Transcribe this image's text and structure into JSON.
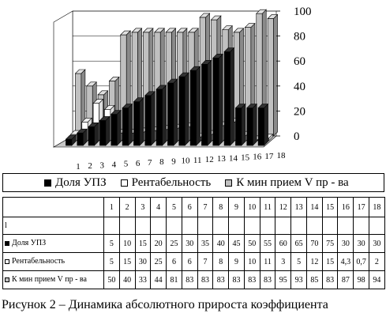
{
  "chart_data": {
    "type": "bar",
    "categories": [
      "1",
      "2",
      "3",
      "4",
      "5",
      "6",
      "7",
      "8",
      "9",
      "10",
      "11",
      "12",
      "13",
      "14",
      "15",
      "16",
      "17",
      "18"
    ],
    "series": [
      {
        "name": "Доля УПЗ",
        "color": "#000000",
        "values": [
          5,
          10,
          15,
          20,
          25,
          30,
          35,
          40,
          45,
          50,
          55,
          60,
          65,
          70,
          75,
          30,
          30,
          30
        ]
      },
      {
        "name": "Рентабельность",
        "color": "#ffffff",
        "values": [
          5,
          15,
          30,
          25,
          6,
          6,
          7,
          8,
          9,
          10,
          11,
          3,
          5,
          12,
          15,
          4.3,
          0.7,
          2
        ]
      },
      {
        "name": "К мин прием V пр - ва",
        "color": "#c0c0c0",
        "values": [
          50,
          40,
          33,
          44,
          81,
          83,
          83,
          83,
          83,
          83,
          83,
          95,
          93,
          85,
          83,
          87,
          98,
          94
        ]
      }
    ],
    "yticks": [
      "0",
      "20",
      "40",
      "60",
      "80",
      "100"
    ],
    "ylim": [
      0,
      100
    ],
    "grid": true
  },
  "table": {
    "columns": [
      "1",
      "2",
      "3",
      "4",
      "5",
      "6",
      "7",
      "8",
      "9",
      "10",
      "11",
      "12",
      "13",
      "14",
      "15",
      "16",
      "17",
      "18"
    ],
    "blank_row_label": "l",
    "rows": [
      {
        "label": "Доля УПЗ",
        "color": "#000000",
        "values": [
          "5",
          "10",
          "15",
          "20",
          "25",
          "30",
          "35",
          "40",
          "45",
          "50",
          "55",
          "60",
          "65",
          "70",
          "75",
          "30",
          "30",
          "30"
        ]
      },
      {
        "label": "Рентабельность",
        "color": "#ffffff",
        "values": [
          "5",
          "15",
          "30",
          "25",
          "6",
          "6",
          "7",
          "8",
          "9",
          "10",
          "11",
          "3",
          "5",
          "12",
          "15",
          "4,3",
          "0,7",
          "2"
        ]
      },
      {
        "label": "К мин прием V пр - ва",
        "color": "#c0c0c0",
        "values": [
          "50",
          "40",
          "33",
          "44",
          "81",
          "83",
          "83",
          "83",
          "83",
          "83",
          "83",
          "95",
          "93",
          "85",
          "83",
          "87",
          "98",
          "94"
        ]
      }
    ]
  },
  "caption": "Рисунок 2 – Динамика абсолютного прироста коэффициента"
}
